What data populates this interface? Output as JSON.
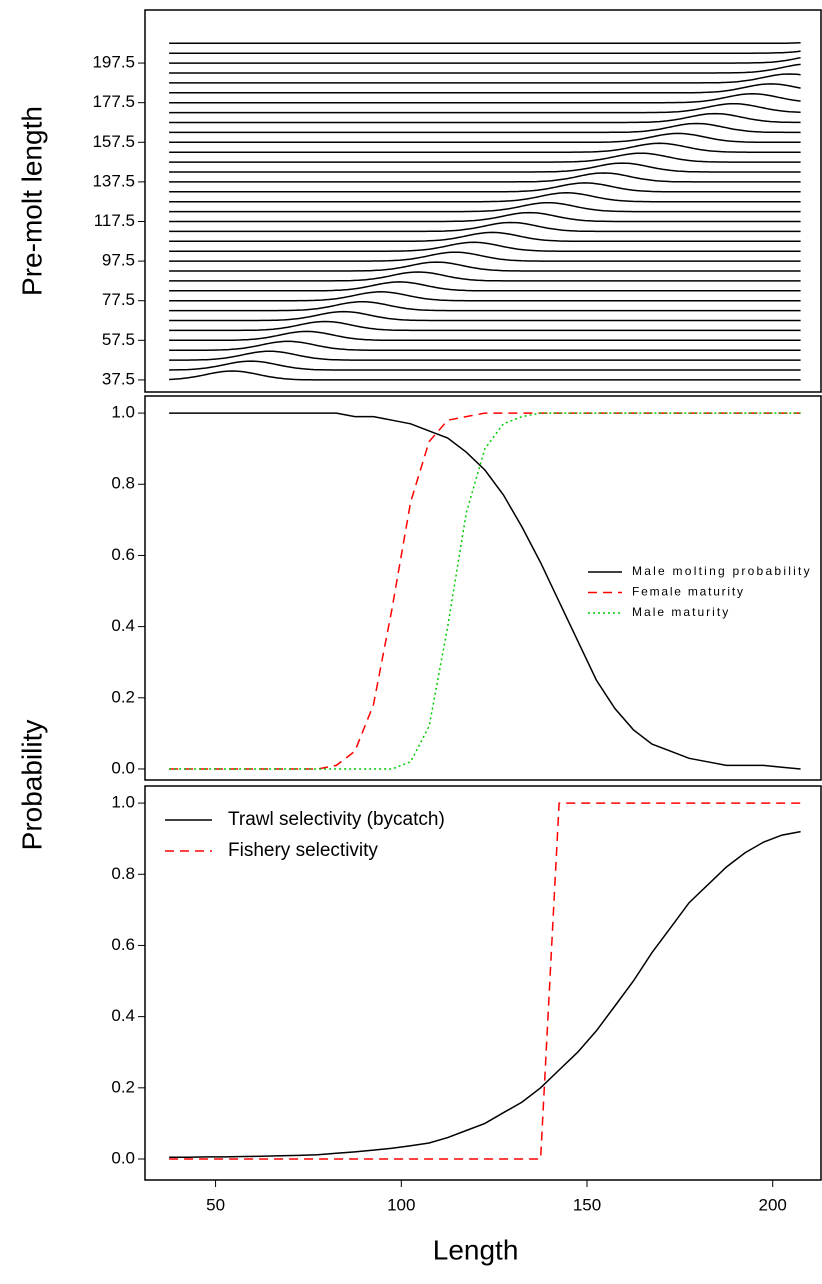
{
  "chart_data": [
    {
      "type": "ridgeline",
      "ylabel": "Pre-molt length",
      "levels": [
        37.5,
        42.5,
        47.5,
        52.5,
        57.5,
        62.5,
        67.5,
        72.5,
        77.5,
        82.5,
        87.5,
        92.5,
        97.5,
        102.5,
        107.5,
        112.5,
        117.5,
        122.5,
        127.5,
        132.5,
        137.5,
        142.5,
        147.5,
        152.5,
        157.5,
        162.5,
        167.5,
        172.5,
        177.5,
        182.5,
        187.5,
        192.5,
        197.5,
        202.5,
        207.5
      ],
      "modes": [
        54.5,
        59.5,
        64.5,
        69.5,
        74.5,
        79.5,
        84.5,
        89.5,
        94.5,
        99.5,
        104.5,
        109.5,
        114.5,
        119.5,
        124.5,
        129.5,
        134.5,
        139.5,
        144.5,
        149.5,
        154.5,
        159.5,
        164.5,
        169.5,
        174.5,
        179.5,
        184.5,
        189.5,
        194.5,
        199.5,
        204.5,
        209.5,
        214.5,
        219.5,
        224.5
      ],
      "color": "#000000",
      "xlim": [
        31,
        213
      ],
      "ylim": [
        31.4,
        224.3
      ],
      "yticks": [
        37.5,
        57.5,
        77.5,
        97.5,
        117.5,
        137.5,
        157.5,
        177.5,
        197.5
      ]
    },
    {
      "type": "line",
      "x": [
        37.5,
        42.5,
        47.5,
        52.5,
        57.5,
        62.5,
        67.5,
        72.5,
        77.5,
        82.5,
        87.5,
        92.5,
        97.5,
        102.5,
        107.5,
        112.5,
        117.5,
        122.5,
        127.5,
        132.5,
        137.5,
        142.5,
        147.5,
        152.5,
        157.5,
        162.5,
        167.5,
        172.5,
        177.5,
        182.5,
        187.5,
        192.5,
        197.5,
        202.5,
        207.5
      ],
      "series": [
        {
          "name": "Male molting probability",
          "color": "#000000",
          "dash": "solid",
          "values": [
            1,
            1,
            1,
            1,
            1,
            1,
            1,
            1,
            1,
            1,
            0.99,
            0.99,
            0.98,
            0.97,
            0.95,
            0.93,
            0.89,
            0.84,
            0.77,
            0.68,
            0.58,
            0.47,
            0.36,
            0.25,
            0.17,
            0.11,
            0.07,
            0.05,
            0.03,
            0.02,
            0.01,
            0.01,
            0.01,
            0.005,
            0
          ]
        },
        {
          "name": "Female maturity",
          "color": "#ff0000",
          "dash": "dashed",
          "values": [
            0,
            0,
            0,
            0,
            0,
            0,
            0,
            0,
            0,
            0.01,
            0.05,
            0.18,
            0.45,
            0.75,
            0.92,
            0.98,
            0.99,
            1,
            1,
            1,
            1,
            1,
            1,
            1,
            1,
            1,
            1,
            1,
            1,
            1,
            1,
            1,
            1,
            1,
            1
          ]
        },
        {
          "name": "Male maturity",
          "color": "#00cc00",
          "dash": "dotted",
          "values": [
            0,
            0,
            0,
            0,
            0,
            0,
            0,
            0,
            0,
            0,
            0,
            0,
            0,
            0.02,
            0.12,
            0.4,
            0.72,
            0.9,
            0.97,
            0.99,
            1,
            1,
            1,
            1,
            1,
            1,
            1,
            1,
            1,
            1,
            1,
            1,
            1,
            1,
            1
          ]
        }
      ],
      "legend": "right",
      "xlim": [
        31,
        213
      ],
      "ylim": [
        -0.031,
        1.048
      ],
      "yticks": [
        {
          "value": 0,
          "label": "0.0"
        },
        {
          "value": 0.2,
          "label": "0.2"
        },
        {
          "value": 0.4,
          "label": "0.4"
        },
        {
          "value": 0.6,
          "label": "0.6"
        },
        {
          "value": 0.8,
          "label": "0.8"
        },
        {
          "value": 1,
          "label": "1.0"
        }
      ]
    },
    {
      "type": "line",
      "xlabel": "Length",
      "ylabel": "Probability",
      "x": [
        37.5,
        42.5,
        47.5,
        52.5,
        57.5,
        62.5,
        67.5,
        72.5,
        77.5,
        82.5,
        87.5,
        92.5,
        97.5,
        102.5,
        107.5,
        112.5,
        117.5,
        122.5,
        127.5,
        132.5,
        137.5,
        142.5,
        147.5,
        152.5,
        157.5,
        162.5,
        167.5,
        172.5,
        177.5,
        182.5,
        187.5,
        192.5,
        197.5,
        202.5,
        207.5
      ],
      "series": [
        {
          "name": "Trawl selectivity (bycatch)",
          "color": "#000000",
          "dash": "solid",
          "values": [
            0.005,
            0.005,
            0.006,
            0.006,
            0.007,
            0.008,
            0.009,
            0.01,
            0.012,
            0.016,
            0.02,
            0.025,
            0.03,
            0.037,
            0.045,
            0.06,
            0.08,
            0.1,
            0.13,
            0.16,
            0.2,
            0.25,
            0.3,
            0.36,
            0.43,
            0.5,
            0.58,
            0.65,
            0.72,
            0.77,
            0.82,
            0.86,
            0.89,
            0.91,
            0.92
          ]
        },
        {
          "name": "Fishery selectivity",
          "color": "#ff0000",
          "dash": "dashed",
          "values": [
            0,
            0,
            0,
            0,
            0,
            0,
            0,
            0,
            0,
            0,
            0,
            0,
            0,
            0,
            0,
            0,
            0,
            0,
            0,
            0,
            0,
            1,
            1,
            1,
            1,
            1,
            1,
            1,
            1,
            1,
            1,
            1,
            1,
            1,
            1
          ]
        }
      ],
      "legend": "top-left",
      "xlim": [
        31,
        213
      ],
      "ylim": [
        -0.059,
        1.048
      ],
      "xticks": [
        50,
        100,
        150,
        200
      ],
      "yticks": [
        {
          "value": 0,
          "label": "0.0"
        },
        {
          "value": 0.2,
          "label": "0.2"
        },
        {
          "value": 0.4,
          "label": "0.4"
        },
        {
          "value": 0.6,
          "label": "0.6"
        },
        {
          "value": 0.8,
          "label": "0.8"
        },
        {
          "value": 1,
          "label": "1.0"
        }
      ]
    }
  ]
}
